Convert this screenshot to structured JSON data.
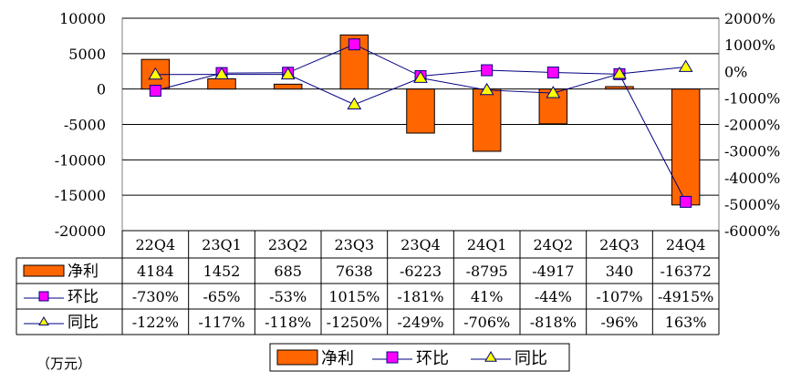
{
  "chart_data": {
    "type": "bar",
    "categories": [
      "22Q4",
      "23Q1",
      "23Q2",
      "23Q3",
      "23Q4",
      "24Q1",
      "24Q2",
      "24Q3",
      "24Q4"
    ],
    "series": [
      {
        "name": "净利",
        "kind": "bar",
        "axis": "left",
        "color": "#FF6600",
        "values": [
          4184,
          1452,
          685,
          7638,
          -6223,
          -8795,
          -4917,
          340,
          -16372
        ],
        "labels": [
          "4184",
          "1452",
          "685",
          "7638",
          "-6223",
          "-8795",
          "-4917",
          "340",
          "-16372"
        ]
      },
      {
        "name": "环比",
        "kind": "line",
        "axis": "right",
        "color": "#000080",
        "marker": "square",
        "marker_color": "#FF00FF",
        "values": [
          -730,
          -65,
          -53,
          1015,
          -181,
          41,
          -44,
          -107,
          -4915
        ],
        "labels": [
          "-730%",
          "-65%",
          "-53%",
          "1015%",
          "-181%",
          "41%",
          "-44%",
          "-107%",
          "-4915%"
        ]
      },
      {
        "name": "同比",
        "kind": "line",
        "axis": "right",
        "color": "#000080",
        "marker": "triangle",
        "marker_color": "#FFFF00",
        "values": [
          -122,
          -117,
          -118,
          -1250,
          -249,
          -706,
          -818,
          -96,
          163
        ],
        "labels": [
          "-122%",
          "-117%",
          "-118%",
          "-1250%",
          "-249%",
          "-706%",
          "-818%",
          "-96%",
          "163%"
        ]
      }
    ],
    "left_axis": {
      "ylim": [
        -20000,
        10000
      ],
      "ticks": [
        10000,
        5000,
        0,
        -5000,
        -10000,
        -15000,
        -20000
      ],
      "tick_labels": [
        "10000",
        "5000",
        "0",
        "-5000",
        "-10000",
        "-15000",
        "-20000"
      ]
    },
    "right_axis": {
      "ylim": [
        -6000,
        2000
      ],
      "ticks": [
        2000,
        1000,
        0,
        -1000,
        -2000,
        -3000,
        -4000,
        -5000,
        -6000
      ],
      "tick_labels": [
        "2000%",
        "1000%",
        "0%",
        "-1000%",
        "-2000%",
        "-3000%",
        "-4000%",
        "-5000%",
        "-6000%"
      ]
    },
    "unit_label": "（万元）",
    "grid": true,
    "data_table": true,
    "legend_position": "bottom"
  }
}
